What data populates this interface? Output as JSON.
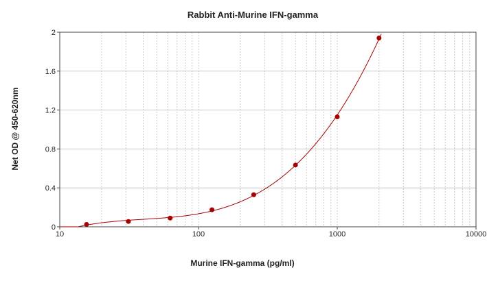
{
  "chart_data": {
    "type": "scatter",
    "title": "Rabbit Anti-Murine IFN-gamma",
    "xlabel": "Murine IFN-gamma (pg/ml)",
    "ylabel": "Net OD @ 450-620nm",
    "x_scale": "log",
    "xlim": [
      10,
      10000
    ],
    "ylim": [
      0,
      2
    ],
    "x_ticks": [
      "10",
      "100",
      "1000",
      "10000"
    ],
    "y_ticks": [
      "0",
      "0.4",
      "0.8",
      "1.2",
      "1.6",
      "2"
    ],
    "grid": true,
    "series": [
      {
        "x": [
          15.6,
          31.25,
          62.5,
          125,
          250,
          500,
          1000,
          2000
        ],
        "y": [
          0.025,
          0.055,
          0.09,
          0.175,
          0.33,
          0.635,
          1.13,
          1.94
        ]
      }
    ],
    "fit_curve": true,
    "colors": {
      "marker": "#a80000",
      "curve": "#a80000",
      "grid": "#c8c8c8",
      "axis": "#444444"
    }
  }
}
